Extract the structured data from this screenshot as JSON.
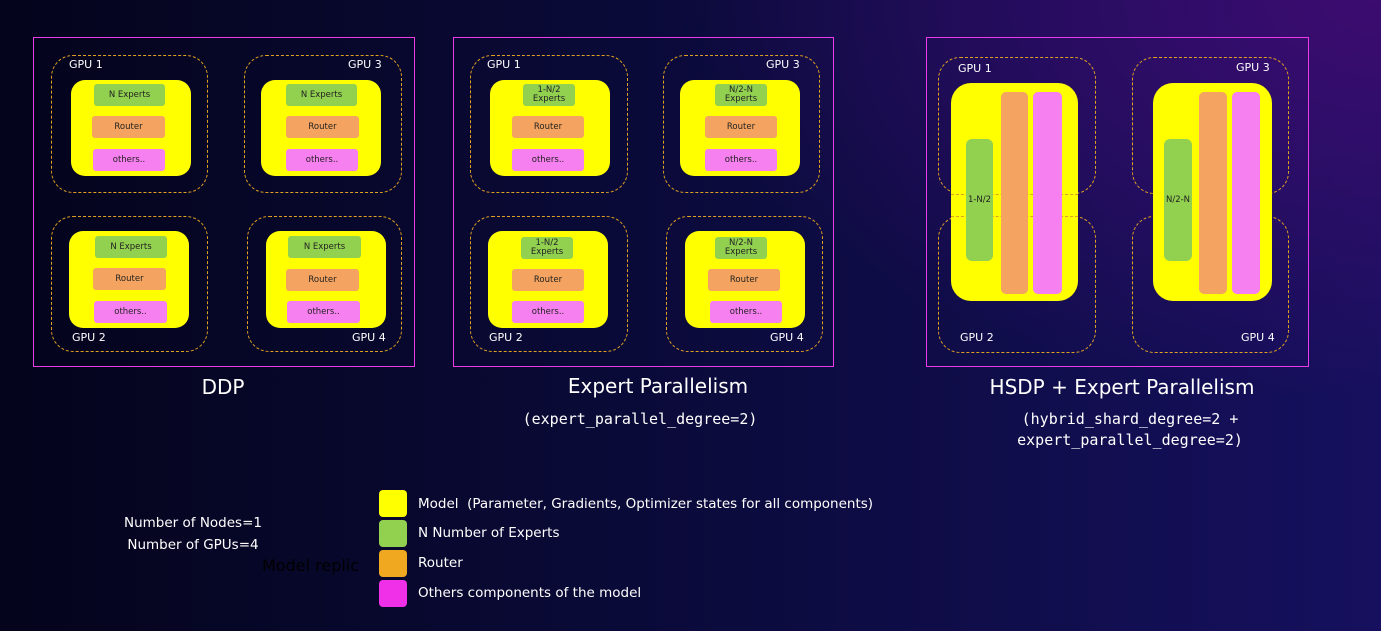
{
  "panels": [
    {
      "title": "DDP",
      "gpus": [
        "GPU 1",
        "GPU 2",
        "GPU 3",
        "GPU 4"
      ],
      "chips": {
        "gpu1": [
          "N Experts",
          "Router",
          "others.."
        ],
        "gpu2": [
          "N Experts",
          "Router",
          "others.."
        ],
        "gpu3": [
          "N Experts",
          "Router",
          "others.."
        ],
        "gpu4": [
          "N Experts",
          "Router",
          "others.."
        ]
      }
    },
    {
      "title": "Expert Parallelism",
      "subtitle": "(expert_parallel_degree=2)",
      "gpus": [
        "GPU 1",
        "GPU 2",
        "GPU 3",
        "GPU 4"
      ],
      "chips": {
        "gpu1": [
          "1-N/2 Experts",
          "Router",
          "others.."
        ],
        "gpu2": [
          "1-N/2 Experts",
          "Router",
          "others.."
        ],
        "gpu3": [
          "N/2-N Experts",
          "Router",
          "others.."
        ],
        "gpu4": [
          "N/2-N Experts",
          "Router",
          "others.."
        ]
      }
    },
    {
      "title": "HSDP + Expert Parallelism",
      "subtitle_line1": "(hybrid_shard_degree=2 +",
      "subtitle_line2": "expert_parallel_degree=2)",
      "gpus": [
        "GPU 1",
        "GPU 2",
        "GPU 3",
        "GPU 4"
      ],
      "experts": [
        "1-N/2",
        "N/2-N"
      ]
    }
  ],
  "info": {
    "nodes": "Number of Nodes=1",
    "gpus": "Number of GPUs=4",
    "hidden_text": "Model replic"
  },
  "legend": [
    {
      "label": "Model  (Parameter, Gradients, Optimizer states for all components)",
      "color": "#ffff00"
    },
    {
      "label": "N Number of Experts",
      "color": "#92d050"
    },
    {
      "label": "Router",
      "color": "#f0a820"
    },
    {
      "label": "Others components of the model",
      "color": "#f030e8"
    }
  ]
}
